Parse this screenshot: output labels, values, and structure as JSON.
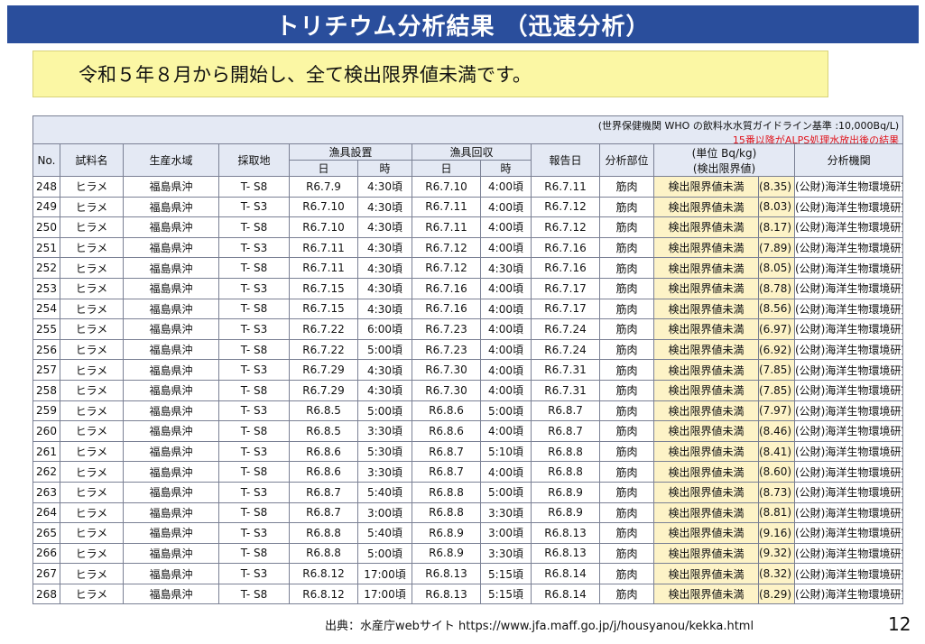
{
  "title": "トリチウム分析結果 （迅速分析）",
  "summary": "令和５年８月から開始し、全て検出限界値未満です。",
  "notes": {
    "who": "(世界保健機関 WHO の飲料水水質ガイドライン基準 :10,000Bq/L)",
    "alps": "15番以降がALPS処理水放出後の結果"
  },
  "headers": {
    "no": "No.",
    "sample": "試料名",
    "area": "生産水域",
    "site": "採取地",
    "set_group": "漁具設置",
    "collect_group": "漁具回収",
    "date": "日",
    "time": "時",
    "report_date": "報告日",
    "part": "分析部位",
    "unit": "(単位 Bq/kg)",
    "limit": "(検出限界値)",
    "lab": "分析機関"
  },
  "rows": [
    {
      "no": "248",
      "sample": "ヒラメ",
      "area": "福島県沖",
      "site": "T- S8",
      "set_date": "R6.7.9",
      "set_time": "4:30頃",
      "col_date": "R6.7.10",
      "col_time": "4:00頃",
      "report": "R6.7.11",
      "part": "筋肉",
      "result": "検出限界値未満",
      "limit": "(8.35)",
      "lab": "(公財)海洋生物環境研究所"
    },
    {
      "no": "249",
      "sample": "ヒラメ",
      "area": "福島県沖",
      "site": "T- S3",
      "set_date": "R6.7.10",
      "set_time": "4:30頃",
      "col_date": "R6.7.11",
      "col_time": "4:00頃",
      "report": "R6.7.12",
      "part": "筋肉",
      "result": "検出限界値未満",
      "limit": "(8.03)",
      "lab": "(公財)海洋生物環境研究所"
    },
    {
      "no": "250",
      "sample": "ヒラメ",
      "area": "福島県沖",
      "site": "T- S8",
      "set_date": "R6.7.10",
      "set_time": "4:30頃",
      "col_date": "R6.7.11",
      "col_time": "4:00頃",
      "report": "R6.7.12",
      "part": "筋肉",
      "result": "検出限界値未満",
      "limit": "(8.17)",
      "lab": "(公財)海洋生物環境研究所"
    },
    {
      "no": "251",
      "sample": "ヒラメ",
      "area": "福島県沖",
      "site": "T- S3",
      "set_date": "R6.7.11",
      "set_time": "4:30頃",
      "col_date": "R6.7.12",
      "col_time": "4:00頃",
      "report": "R6.7.16",
      "part": "筋肉",
      "result": "検出限界値未満",
      "limit": "(7.89)",
      "lab": "(公財)海洋生物環境研究所"
    },
    {
      "no": "252",
      "sample": "ヒラメ",
      "area": "福島県沖",
      "site": "T- S8",
      "set_date": "R6.7.11",
      "set_time": "4:30頃",
      "col_date": "R6.7.12",
      "col_time": "4:30頃",
      "report": "R6.7.16",
      "part": "筋肉",
      "result": "検出限界値未満",
      "limit": "(8.05)",
      "lab": "(公財)海洋生物環境研究所"
    },
    {
      "no": "253",
      "sample": "ヒラメ",
      "area": "福島県沖",
      "site": "T- S3",
      "set_date": "R6.7.15",
      "set_time": "4:30頃",
      "col_date": "R6.7.16",
      "col_time": "4:00頃",
      "report": "R6.7.17",
      "part": "筋肉",
      "result": "検出限界値未満",
      "limit": "(8.78)",
      "lab": "(公財)海洋生物環境研究所"
    },
    {
      "no": "254",
      "sample": "ヒラメ",
      "area": "福島県沖",
      "site": "T- S8",
      "set_date": "R6.7.15",
      "set_time": "4:30頃",
      "col_date": "R6.7.16",
      "col_time": "4:00頃",
      "report": "R6.7.17",
      "part": "筋肉",
      "result": "検出限界値未満",
      "limit": "(8.56)",
      "lab": "(公財)海洋生物環境研究所"
    },
    {
      "no": "255",
      "sample": "ヒラメ",
      "area": "福島県沖",
      "site": "T- S3",
      "set_date": "R6.7.22",
      "set_time": "6:00頃",
      "col_date": "R6.7.23",
      "col_time": "4:00頃",
      "report": "R6.7.24",
      "part": "筋肉",
      "result": "検出限界値未満",
      "limit": "(6.97)",
      "lab": "(公財)海洋生物環境研究所"
    },
    {
      "no": "256",
      "sample": "ヒラメ",
      "area": "福島県沖",
      "site": "T- S8",
      "set_date": "R6.7.22",
      "set_time": "5:00頃",
      "col_date": "R6.7.23",
      "col_time": "4:00頃",
      "report": "R6.7.24",
      "part": "筋肉",
      "result": "検出限界値未満",
      "limit": "(6.92)",
      "lab": "(公財)海洋生物環境研究所"
    },
    {
      "no": "257",
      "sample": "ヒラメ",
      "area": "福島県沖",
      "site": "T- S3",
      "set_date": "R6.7.29",
      "set_time": "4:30頃",
      "col_date": "R6.7.30",
      "col_time": "4:00頃",
      "report": "R6.7.31",
      "part": "筋肉",
      "result": "検出限界値未満",
      "limit": "(7.85)",
      "lab": "(公財)海洋生物環境研究所"
    },
    {
      "no": "258",
      "sample": "ヒラメ",
      "area": "福島県沖",
      "site": "T- S8",
      "set_date": "R6.7.29",
      "set_time": "4:30頃",
      "col_date": "R6.7.30",
      "col_time": "4:00頃",
      "report": "R6.7.31",
      "part": "筋肉",
      "result": "検出限界値未満",
      "limit": "(7.85)",
      "lab": "(公財)海洋生物環境研究所"
    },
    {
      "no": "259",
      "sample": "ヒラメ",
      "area": "福島県沖",
      "site": "T- S3",
      "set_date": "R6.8.5",
      "set_time": "5:00頃",
      "col_date": "R6.8.6",
      "col_time": "5:00頃",
      "report": "R6.8.7",
      "part": "筋肉",
      "result": "検出限界値未満",
      "limit": "(7.97)",
      "lab": "(公財)海洋生物環境研究所"
    },
    {
      "no": "260",
      "sample": "ヒラメ",
      "area": "福島県沖",
      "site": "T- S8",
      "set_date": "R6.8.5",
      "set_time": "3:30頃",
      "col_date": "R6.8.6",
      "col_time": "4:00頃",
      "report": "R6.8.7",
      "part": "筋肉",
      "result": "検出限界値未満",
      "limit": "(8.46)",
      "lab": "(公財)海洋生物環境研究所"
    },
    {
      "no": "261",
      "sample": "ヒラメ",
      "area": "福島県沖",
      "site": "T- S3",
      "set_date": "R6.8.6",
      "set_time": "5:30頃",
      "col_date": "R6.8.7",
      "col_time": "5:10頃",
      "report": "R6.8.8",
      "part": "筋肉",
      "result": "検出限界値未満",
      "limit": "(8.41)",
      "lab": "(公財)海洋生物環境研究所"
    },
    {
      "no": "262",
      "sample": "ヒラメ",
      "area": "福島県沖",
      "site": "T- S8",
      "set_date": "R6.8.6",
      "set_time": "3:30頃",
      "col_date": "R6.8.7",
      "col_time": "4:00頃",
      "report": "R6.8.8",
      "part": "筋肉",
      "result": "検出限界値未満",
      "limit": "(8.60)",
      "lab": "(公財)海洋生物環境研究所"
    },
    {
      "no": "263",
      "sample": "ヒラメ",
      "area": "福島県沖",
      "site": "T- S3",
      "set_date": "R6.8.7",
      "set_time": "5:40頃",
      "col_date": "R6.8.8",
      "col_time": "5:00頃",
      "report": "R6.8.9",
      "part": "筋肉",
      "result": "検出限界値未満",
      "limit": "(8.73)",
      "lab": "(公財)海洋生物環境研究所"
    },
    {
      "no": "264",
      "sample": "ヒラメ",
      "area": "福島県沖",
      "site": "T- S8",
      "set_date": "R6.8.7",
      "set_time": "3:00頃",
      "col_date": "R6.8.8",
      "col_time": "3:30頃",
      "report": "R6.8.9",
      "part": "筋肉",
      "result": "検出限界値未満",
      "limit": "(8.81)",
      "lab": "(公財)海洋生物環境研究所"
    },
    {
      "no": "265",
      "sample": "ヒラメ",
      "area": "福島県沖",
      "site": "T- S3",
      "set_date": "R6.8.8",
      "set_time": "5:40頃",
      "col_date": "R6.8.9",
      "col_time": "3:00頃",
      "report": "R6.8.13",
      "part": "筋肉",
      "result": "検出限界値未満",
      "limit": "(9.16)",
      "lab": "(公財)海洋生物環境研究所"
    },
    {
      "no": "266",
      "sample": "ヒラメ",
      "area": "福島県沖",
      "site": "T- S8",
      "set_date": "R6.8.8",
      "set_time": "5:00頃",
      "col_date": "R6.8.9",
      "col_time": "3:30頃",
      "report": "R6.8.13",
      "part": "筋肉",
      "result": "検出限界値未満",
      "limit": "(9.32)",
      "lab": "(公財)海洋生物環境研究所"
    },
    {
      "no": "267",
      "sample": "ヒラメ",
      "area": "福島県沖",
      "site": "T- S3",
      "set_date": "R6.8.12",
      "set_time": "17:00頃",
      "col_date": "R6.8.13",
      "col_time": "5:15頃",
      "report": "R6.8.14",
      "part": "筋肉",
      "result": "検出限界値未満",
      "limit": "(8.32)",
      "lab": "(公財)海洋生物環境研究所"
    },
    {
      "no": "268",
      "sample": "ヒラメ",
      "area": "福島県沖",
      "site": "T- S8",
      "set_date": "R6.8.12",
      "set_time": "17:00頃",
      "col_date": "R6.8.13",
      "col_time": "5:15頃",
      "report": "R6.8.14",
      "part": "筋肉",
      "result": "検出限界値未満",
      "limit": "(8.29)",
      "lab": "(公財)海洋生物環境研究所"
    }
  ],
  "source": "出典：水産庁webサイト https://www.jfa.maff.go.jp/j/housyanou/kekka.html",
  "page_number": "12",
  "colors": {
    "title_bg": "#2a4e9c",
    "summary_bg": "#fbf7a4",
    "header_bg": "#e4e9f4",
    "result_bg": "#fdf3c7",
    "alps_note": "#e0141c"
  }
}
